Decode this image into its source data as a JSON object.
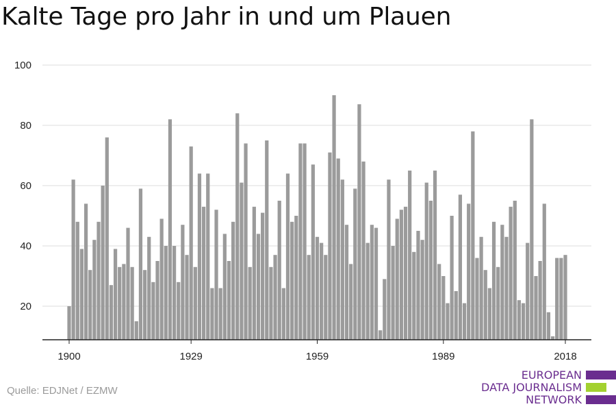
{
  "title": "Kalte Tage pro Jahr in und um Plauen",
  "source": "Quelle: EDJNet / EZMW",
  "logo": {
    "lines": [
      "EUROPEAN",
      "DATA JOURNALISM",
      "NETWORK"
    ],
    "colors": [
      "#6a2d8f",
      "#a3d12f",
      "#6a2d8f"
    ]
  },
  "chart_data": {
    "type": "bar",
    "title": "Kalte Tage pro Jahr in und um Plauen",
    "xlabel": "",
    "ylabel": "",
    "bar_color": "#9b9b9b",
    "grid": true,
    "x_start": 1900,
    "x_end": 2018,
    "x_ticks": [
      1900,
      1929,
      1959,
      1989,
      2018
    ],
    "y_ticks": [
      20,
      40,
      60,
      80,
      100
    ],
    "ylim": [
      9,
      100
    ],
    "values": [
      20,
      62,
      48,
      39,
      54,
      32,
      42,
      48,
      60,
      76,
      27,
      39,
      33,
      34,
      46,
      33,
      15,
      59,
      32,
      43,
      28,
      35,
      49,
      40,
      82,
      40,
      28,
      47,
      37,
      73,
      33,
      64,
      53,
      64,
      26,
      52,
      26,
      44,
      35,
      48,
      84,
      61,
      74,
      33,
      53,
      44,
      51,
      75,
      33,
      37,
      55,
      26,
      64,
      48,
      50,
      74,
      74,
      37,
      67,
      43,
      41,
      37,
      71,
      90,
      69,
      62,
      47,
      34,
      59,
      87,
      68,
      41,
      47,
      46,
      12,
      29,
      62,
      40,
      49,
      52,
      53,
      65,
      38,
      45,
      42,
      61,
      55,
      65,
      34,
      30,
      21,
      50,
      25,
      57,
      21,
      54,
      78,
      36,
      43,
      32,
      26,
      48,
      33,
      47,
      43,
      53,
      55,
      22,
      21,
      41,
      82,
      30,
      35,
      54,
      18,
      10,
      36,
      36,
      37
    ]
  }
}
